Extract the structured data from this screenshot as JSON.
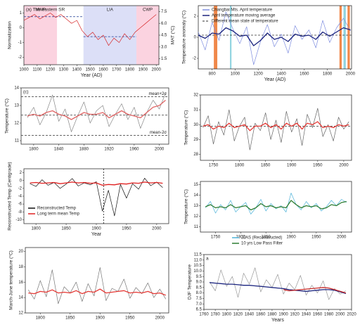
{
  "chart_data": [
    {
      "type": "line",
      "annotation": "(a) The eastern SR",
      "ylabel": "Normalization",
      "y2label": "MAT (°C)",
      "xlabel": "Year (AD)",
      "x": [
        1000,
        1040,
        1080,
        1120,
        1160,
        1200,
        1240,
        1280,
        1320,
        1360,
        1400,
        1440,
        1480,
        1520,
        1560,
        1600,
        1640,
        1680,
        1720,
        1760,
        1800,
        1840,
        1880,
        1920,
        1960,
        2000
      ],
      "series": [
        {
          "color": "#d62728",
          "values": [
            0.5,
            0.7,
            0.9,
            0.6,
            0.8,
            1.0,
            0.7,
            0.9,
            0.6,
            0.3,
            0.5,
            -0.2,
            -0.6,
            -0.3,
            -0.8,
            -0.5,
            -1.2,
            -0.7,
            -1.0,
            -0.4,
            -0.8,
            -0.3,
            0.0,
            0.3,
            0.6,
            0.9
          ]
        }
      ],
      "spans": [
        {
          "x": [
            1000,
            1250
          ],
          "color": "#fbd3e0",
          "label": "MWP"
        },
        {
          "x": [
            1450,
            1850
          ],
          "color": "#dcdff7",
          "label": "LIA"
        },
        {
          "x": [
            1850,
            2020
          ],
          "color": "#fbd3e0",
          "label": "CWP"
        }
      ],
      "hlines": [
        {
          "x": [
            1000,
            1450
          ],
          "y": 0.75
        },
        {
          "x": [
            1450,
            1850
          ],
          "y": -0.6
        }
      ],
      "xlim": [
        1000,
        2020
      ],
      "xticks": [
        1000,
        1100,
        1200,
        1300,
        1400,
        1500,
        1600,
        1700,
        1800,
        1900,
        2000
      ],
      "ylim": [
        -2.5,
        1.5
      ],
      "yticks": [
        -2,
        -1,
        0,
        1
      ],
      "y2lim": [
        0.75,
        8.25
      ],
      "y2ticks": [
        1.5,
        {
          "value": 3,
          "label": "3.0"
        },
        4.5,
        {
          "value": 6,
          "label": "6.0"
        },
        7.5
      ]
    },
    {
      "type": "line",
      "ylabel": "Temperature anomaly (°C)",
      "xlabel": "Year (AD)",
      "x": [
        680,
        740,
        800,
        860,
        920,
        980,
        1040,
        1100,
        1160,
        1220,
        1280,
        1340,
        1400,
        1460,
        1520,
        1580,
        1640,
        1700,
        1760,
        1820,
        1880,
        1940,
        2000
      ],
      "series": [
        {
          "name": "Changbai Mts. April temperature",
          "color": "#7f8ee0",
          "values": [
            0.5,
            -1.2,
            1.4,
            -0.3,
            2.4,
            0.8,
            -0.6,
            1.0,
            -2.6,
            -0.4,
            1.2,
            -0.9,
            0.3,
            -1.5,
            1.1,
            -0.2,
            0.7,
            -1.0,
            1.6,
            -0.5,
            0.9,
            1.8,
            0.6
          ]
        },
        {
          "name": "April temperature moving average",
          "color": "#1a237e",
          "values": [
            0.2,
            -0.1,
            0.4,
            0.3,
            0.9,
            0.6,
            0.1,
            0.2,
            -0.8,
            -0.3,
            0.4,
            -0.2,
            0,
            -0.4,
            0.3,
            0.1,
            0.2,
            -0.2,
            0.5,
            0.1,
            0.5,
            0.9,
            0.7
          ]
        }
      ],
      "spans": [
        {
          "x": [
            815,
            845
          ],
          "color": "#f0884a"
        },
        {
          "x": [
            955,
            968
          ],
          "color": "#8fd3e0"
        },
        {
          "x": [
            1905,
            1925
          ],
          "color": "#f0884a"
        },
        {
          "x": [
            1940,
            1960
          ],
          "color": "#8fd3e0"
        },
        {
          "x": [
            1975,
            1995
          ],
          "color": "#f0884a"
        }
      ],
      "hlines": [
        {
          "name": "Different mean state of temperature",
          "y": 0.2
        }
      ],
      "xlim": [
        680,
        2010
      ],
      "xticks": [
        800,
        1000,
        1200,
        1400,
        1600,
        1800,
        2000
      ],
      "ylim": [
        -3,
        3
      ],
      "yticks": [
        -2,
        0,
        2
      ]
    },
    {
      "type": "line",
      "annotation": "(c)",
      "ylabel": "Temperature (°C)",
      "x": [
        1790,
        1800,
        1810,
        1820,
        1830,
        1840,
        1850,
        1860,
        1870,
        1880,
        1890,
        1900,
        1910,
        1920,
        1930,
        1940,
        1950,
        1960,
        1970,
        1980,
        1990,
        2000,
        2010
      ],
      "series": [
        {
          "color": "#888888",
          "values": [
            12.3,
            12.9,
            11.9,
            12.6,
            13.6,
            12.1,
            12.8,
            11.5,
            12.4,
            13.2,
            12.0,
            12.7,
            13.0,
            11.8,
            12.5,
            13.1,
            12.2,
            12.9,
            11.7,
            12.6,
            13.3,
            12.8,
            13.7
          ]
        },
        {
          "color": "#e06666",
          "values": [
            12.4,
            12.5,
            12.4,
            12.6,
            12.7,
            12.5,
            12.4,
            12.2,
            12.4,
            12.6,
            12.5,
            12.5,
            12.6,
            12.3,
            12.5,
            12.7,
            12.5,
            12.4,
            12.3,
            12.6,
            12.9,
            13.0,
            13.3
          ]
        }
      ],
      "hlines": [
        {
          "y": 13.5,
          "label": "mean+2σ"
        },
        {
          "y": 12.45
        },
        {
          "y": 11.3,
          "label": "mean-2σ"
        }
      ],
      "xlim": [
        1780,
        2015
      ],
      "xticks": [
        1800,
        1840,
        1880,
        1920,
        1960,
        2000
      ],
      "ylim": [
        10.8,
        14
      ],
      "yticks": [
        11,
        12,
        13,
        14
      ]
    },
    {
      "type": "line",
      "ylabel": "Temperature (°C)",
      "x": [
        1730,
        1740,
        1750,
        1760,
        1770,
        1780,
        1790,
        1800,
        1810,
        1820,
        1830,
        1840,
        1850,
        1860,
        1870,
        1880,
        1890,
        1900,
        1910,
        1920,
        1930,
        1940,
        1950,
        1960,
        1970,
        1980,
        1990,
        2000,
        2010
      ],
      "series": [
        {
          "color": "#666666",
          "values": [
            29.8,
            30.6,
            28.7,
            30.2,
            29.3,
            31.0,
            28.9,
            29.9,
            30.5,
            28.3,
            30.1,
            29.6,
            30.8,
            29.0,
            30.3,
            28.8,
            30.9,
            29.5,
            30.4,
            28.6,
            30.7,
            29.8,
            31.1,
            29.2,
            30.0,
            28.9,
            30.5,
            29.7,
            30.2
          ]
        },
        {
          "color": "#e53935",
          "values": [
            29.9,
            30.0,
            29.7,
            29.9,
            29.8,
            30.1,
            29.8,
            29.9,
            30.0,
            29.6,
            29.9,
            29.9,
            30.1,
            29.8,
            30.0,
            29.7,
            30.1,
            29.9,
            30.1,
            29.7,
            30.1,
            30.0,
            30.2,
            29.8,
            29.9,
            29.8,
            30.0,
            29.9,
            30.0
          ]
        }
      ],
      "hlines": [
        {
          "y": 29.9
        }
      ],
      "xlim": [
        1725,
        2015
      ],
      "xticks": [
        1750,
        1800,
        1850,
        1900,
        1950,
        2000
      ],
      "ylim": [
        27.6,
        32
      ],
      "yticks": [
        28,
        29,
        30,
        31,
        32
      ]
    },
    {
      "type": "line",
      "ylabel": "Reconstructed Temp (Centigrade)",
      "xlabel": "Year",
      "x": [
        1790,
        1800,
        1810,
        1820,
        1830,
        1840,
        1850,
        1860,
        1870,
        1880,
        1890,
        1900,
        1910,
        1920,
        1930,
        1940,
        1950,
        1960,
        1970,
        1980,
        1990,
        2000,
        2010
      ],
      "series": [
        {
          "name": "Reconstructed Temp",
          "color": "#111111",
          "values": [
            -0.8,
            -1.5,
            0.2,
            -1.2,
            -0.5,
            -2.0,
            -0.9,
            0.5,
            -1.4,
            -0.6,
            -1.1,
            -0.3,
            -7.8,
            -2.5,
            -9.0,
            -1.0,
            -4.5,
            -0.8,
            -2.2,
            0.6,
            -1.3,
            -0.4,
            -1.8
          ]
        },
        {
          "name": "Long term mean Temp",
          "color": "#e02020",
          "values": [
            -0.6,
            -0.5,
            -0.7,
            -0.6,
            -0.5,
            -0.8,
            -0.6,
            -0.4,
            -0.6,
            -0.5,
            -0.7,
            -0.6,
            -1.2,
            -1.0,
            -1.1,
            -0.8,
            -0.9,
            -0.6,
            -0.7,
            -0.4,
            -0.6,
            -0.5,
            -0.7
          ]
        }
      ],
      "vlines": [
        1912
      ],
      "xlim": [
        1780,
        2020
      ],
      "xticks": [
        1800,
        1850,
        1900,
        1950,
        2000
      ],
      "ylim": [
        -11,
        3
      ],
      "yticks": [
        2,
        0,
        -2,
        -4,
        -6,
        -8,
        -10
      ]
    },
    {
      "type": "line",
      "ylabel": "Temperature (°C)",
      "x": [
        1730,
        1740,
        1750,
        1760,
        1770,
        1780,
        1790,
        1800,
        1810,
        1820,
        1830,
        1840,
        1850,
        1860,
        1870,
        1880,
        1890,
        1900,
        1910,
        1920,
        1930,
        1940,
        1950,
        1960,
        1970,
        1980,
        1990,
        2000,
        2010
      ],
      "series": [
        {
          "name": "JJAS (Reconstructed)",
          "color": "#4fb3d9",
          "values": [
            12.8,
            13.4,
            12.3,
            13.1,
            12.6,
            13.5,
            12.4,
            12.9,
            13.3,
            12.2,
            12.8,
            13.6,
            12.5,
            13.2,
            12.7,
            13.0,
            12.4,
            14.2,
            13.1,
            12.6,
            13.4,
            12.8,
            13.2,
            12.5,
            12.9,
            13.5,
            13.0,
            13.6,
            13.3
          ]
        },
        {
          "name": "10 yrs Low Pass Filter",
          "color": "#2e7d32",
          "values": [
            12.9,
            13.1,
            12.8,
            12.9,
            12.8,
            13.1,
            12.8,
            12.9,
            13.0,
            12.6,
            12.8,
            13.2,
            12.9,
            13.0,
            12.8,
            12.9,
            12.8,
            13.5,
            13.1,
            12.8,
            13.0,
            12.9,
            13.0,
            12.7,
            12.8,
            13.1,
            13.0,
            13.3,
            13.4
          ]
        }
      ],
      "xlim": [
        1720,
        2020
      ],
      "xticks": [
        1750,
        1800,
        1850,
        1900,
        1950,
        2000
      ],
      "ylim": [
        10.5,
        15.3
      ],
      "yticks": [
        11,
        12,
        13,
        14,
        15
      ]
    },
    {
      "type": "line",
      "ylabel": "March-June temperature (°C)",
      "x": [
        1780,
        1790,
        1800,
        1810,
        1820,
        1830,
        1840,
        1850,
        1860,
        1870,
        1880,
        1890,
        1900,
        1910,
        1920,
        1930,
        1940,
        1950,
        1960,
        1970,
        1980,
        1990,
        2000,
        2010
      ],
      "series": [
        {
          "color": "#777777",
          "values": [
            15.0,
            13.8,
            16.2,
            14.1,
            17.6,
            13.2,
            15.4,
            14.6,
            16.0,
            13.5,
            15.8,
            14.2,
            17.9,
            13.6,
            15.2,
            14.8,
            16.4,
            13.9,
            15.3,
            14.5,
            15.9,
            14.0,
            15.1,
            13.8
          ]
        },
        {
          "color": "#e53935",
          "values": [
            14.6,
            14.5,
            14.8,
            14.7,
            15.0,
            14.6,
            14.7,
            14.6,
            14.9,
            14.5,
            14.8,
            14.7,
            15.1,
            14.6,
            14.7,
            14.8,
            14.9,
            14.6,
            14.7,
            14.6,
            14.8,
            14.5,
            14.6,
            14.3
          ]
        }
      ],
      "xlim": [
        1775,
        2015
      ],
      "xticks": [
        1800,
        1850,
        1900,
        1950,
        2000
      ],
      "ylim": [
        12,
        20.5
      ],
      "yticks": [
        12,
        14,
        16,
        18,
        20
      ]
    },
    {
      "type": "line",
      "annotation": "a",
      "ylabel": "DJF Temperature",
      "xlabel": "Years",
      "x": [
        1770,
        1780,
        1790,
        1800,
        1810,
        1820,
        1830,
        1840,
        1850,
        1860,
        1870,
        1880,
        1890,
        1900,
        1910,
        1920,
        1930,
        1940,
        1950,
        1960,
        1970,
        1980,
        1990,
        2000,
        2010
      ],
      "series": [
        {
          "color": "#999999",
          "values": [
            9.0,
            8.2,
            10.1,
            8.6,
            9.5,
            7.6,
            9.8,
            8.8,
            10.3,
            8.1,
            9.2,
            8.5,
            9.7,
            7.9,
            8.9,
            8.3,
            9.6,
            7.8,
            8.7,
            8.0,
            9.1,
            7.4,
            8.4,
            7.9,
            8.2
          ]
        },
        {
          "color": "#1a237e",
          "values": [
            8.95,
            8.9,
            8.85,
            8.8,
            8.8,
            8.75,
            8.7,
            8.7,
            8.65,
            8.6,
            8.55,
            8.5,
            8.45,
            8.4,
            8.3,
            8.25,
            8.2,
            8.15,
            8.2,
            8.25,
            8.3,
            8.3,
            8.25,
            8.1,
            7.95
          ]
        },
        {
          "color": "#c62828",
          "values": [
            null,
            null,
            null,
            null,
            null,
            null,
            null,
            null,
            null,
            null,
            null,
            null,
            null,
            8.3,
            8.2,
            8.25,
            8.3,
            8.35,
            8.4,
            8.45,
            8.5,
            8.45,
            8.3,
            8.15,
            8.0
          ]
        }
      ],
      "xlim": [
        1760,
        2020
      ],
      "xticks": [
        1760,
        1780,
        1800,
        1820,
        1840,
        1860,
        1880,
        1900,
        1920,
        1940,
        1960,
        1980,
        2000,
        2020
      ],
      "ylim": [
        6.5,
        11.5
      ],
      "yticks": [
        6.5,
        {
          "value": 7,
          "label": "7.0"
        },
        7.5,
        {
          "value": 8,
          "label": "8.0"
        },
        8.5,
        {
          "value": 9,
          "label": "9.0"
        },
        9.5,
        {
          "value": 10,
          "label": "10.0"
        },
        10.5,
        {
          "value": 11,
          "label": "11.0"
        },
        11.5
      ]
    }
  ]
}
